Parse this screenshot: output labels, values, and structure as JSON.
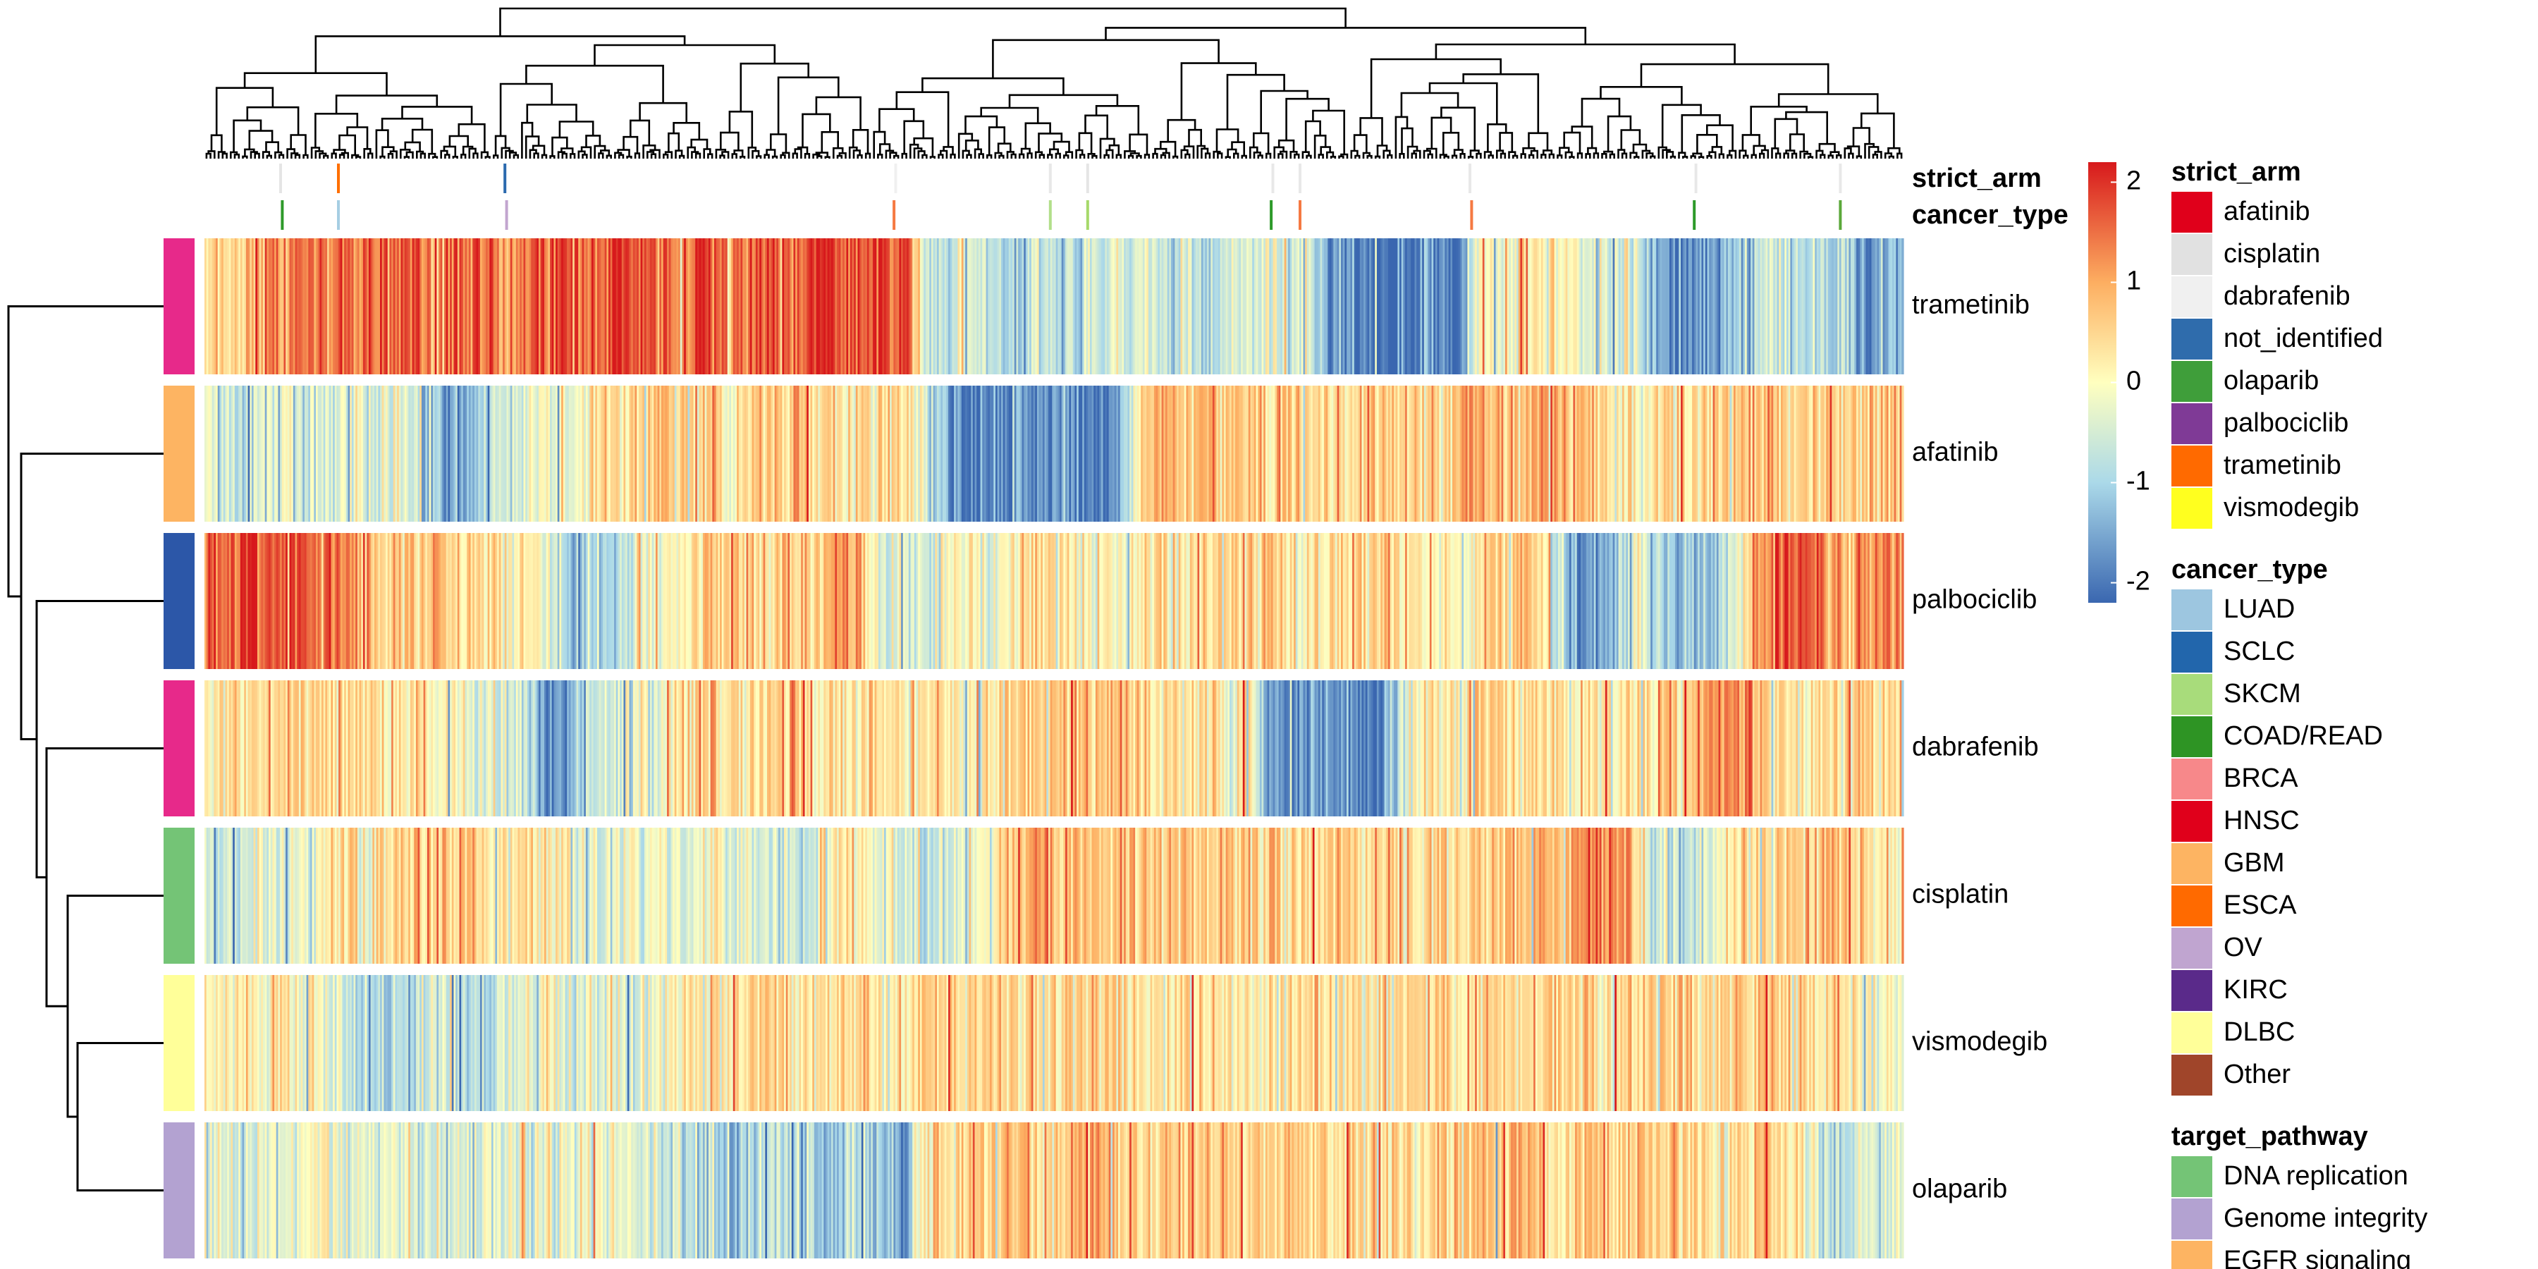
{
  "chart_data": {
    "type": "heatmap",
    "title": "",
    "rows": [
      "trametinib",
      "afatinib",
      "palbociclib",
      "dabrafenib",
      "cisplatin",
      "vismodegib",
      "olaparib"
    ],
    "row_pathway_colors": [
      "#E7298A",
      "#FDB462",
      "#2C57A8",
      "#E7298A",
      "#74C476",
      "#FFFF99",
      "#B3A2D1"
    ],
    "n_columns": 900,
    "color_scale": {
      "colors": [
        "#3A67B0",
        "#ABD9E9",
        "#FFFFBF",
        "#FDAE61",
        "#D7191C"
      ],
      "breaks": [
        -2.2,
        -1,
        0,
        1,
        2.2
      ]
    },
    "colorbar": {
      "ticks": [
        2,
        1,
        0,
        -1,
        -2
      ],
      "tick_labels": [
        "2",
        "1",
        "0",
        "-1",
        "-2"
      ]
    },
    "row_profiles": [
      [
        0.3,
        0.5,
        0.8,
        1.2,
        1.5,
        1.4,
        1.0,
        1.6,
        1.7,
        1.6,
        1.5,
        1.3,
        1.6,
        1.5,
        0.9,
        1.4,
        1.8,
        1.9,
        1.7,
        1.8,
        1.7,
        1.5,
        1.3,
        1.7,
        1.6,
        1.5,
        1.4,
        1.8,
        1.7,
        1.9,
        1.6,
        1.7,
        2.0,
        1.8,
        -0.6,
        -0.9,
        -0.4,
        -0.8,
        -1.2,
        -0.5,
        -0.7,
        -1.0,
        -0.6,
        -0.3,
        -0.4,
        -0.6,
        -0.8,
        -0.9,
        -0.7,
        -0.4,
        -0.5,
        -0.6,
        -0.4,
        -1.8,
        -2.0,
        -1.9,
        -2.1,
        -1.9,
        -1.8,
        -2.0,
        -0.1,
        -0.4,
        0.3,
        -0.2,
        0.1,
        -0.4,
        -0.6,
        -0.3,
        -1.4,
        -1.8,
        -1.7,
        -1.5,
        -1.0,
        -0.6,
        -0.4,
        -0.9,
        -1.1,
        -0.7,
        -1.5,
        -1.6
      ],
      [
        -0.3,
        -0.6,
        -0.8,
        -0.4,
        -0.2,
        -0.6,
        -0.5,
        -0.3,
        -0.4,
        -0.2,
        -0.9,
        -1.5,
        -1.7,
        -1.2,
        -0.6,
        -0.3,
        0.1,
        -0.2,
        0.0,
        0.3,
        0.2,
        0.5,
        0.4,
        0.3,
        0.6,
        0.2,
        0.5,
        0.7,
        0.9,
        0.4,
        0.2,
        0.3,
        0.6,
        0.4,
        -0.8,
        -1.6,
        -1.9,
        -2.0,
        -1.8,
        -1.7,
        -1.9,
        -2.0,
        -1.8,
        -1.7,
        0.6,
        0.9,
        1.1,
        1.2,
        0.8,
        0.6,
        0.5,
        0.7,
        0.4,
        0.3,
        0.5,
        0.6,
        0.5,
        0.4,
        0.6,
        0.8,
        1.0,
        0.9,
        0.8,
        1.2,
        0.9,
        0.5,
        0.4,
        0.2,
        0.3,
        0.6,
        0.5,
        0.4,
        0.7,
        0.8,
        0.6,
        0.5,
        0.7,
        0.6,
        0.5,
        0.7
      ],
      [
        1.2,
        1.6,
        1.9,
        1.7,
        1.8,
        1.5,
        1.3,
        1.0,
        0.7,
        0.6,
        0.5,
        0.7,
        0.6,
        0.4,
        0.3,
        0.2,
        0.0,
        -0.8,
        -1.1,
        -0.9,
        -0.6,
        -0.2,
        0.2,
        0.4,
        0.7,
        0.8,
        0.5,
        0.7,
        0.6,
        0.8,
        1.2,
        0.6,
        -0.1,
        -0.3,
        -0.5,
        -0.2,
        0.1,
        -0.4,
        0.2,
        0.4,
        0.3,
        0.2,
        0.0,
        -0.2,
        0.2,
        0.5,
        0.6,
        0.4,
        0.3,
        0.5,
        0.6,
        0.4,
        0.3,
        0.5,
        0.4,
        0.6,
        0.5,
        0.4,
        0.3,
        0.2,
        0.4,
        0.6,
        0.5,
        0.3,
        -1.3,
        -1.7,
        -1.4,
        -0.8,
        -0.4,
        -1.0,
        -1.5,
        -1.2,
        -0.5,
        1.3,
        1.6,
        1.8,
        1.5,
        1.2,
        1.1,
        1.3
      ],
      [
        0.3,
        0.5,
        0.2,
        0.4,
        0.5,
        0.3,
        0.6,
        0.4,
        0.2,
        0.1,
        0.3,
        0.2,
        0.0,
        -0.3,
        -0.5,
        -1.0,
        -1.7,
        -1.5,
        -0.9,
        -0.6,
        -0.4,
        -0.3,
        0.2,
        0.4,
        0.5,
        0.3,
        0.4,
        0.6,
        0.5,
        0.4,
        0.3,
        0.5,
        0.4,
        0.2,
        0.3,
        0.4,
        0.2,
        0.3,
        0.5,
        0.6,
        0.8,
        0.9,
        0.7,
        0.6,
        0.4,
        0.5,
        0.3,
        0.2,
        0.1,
        0.2,
        -1.5,
        -1.8,
        -1.9,
        -1.7,
        -1.8,
        -1.6,
        -1.2,
        0.1,
        0.3,
        0.4,
        0.5,
        0.6,
        0.3,
        0.4,
        0.5,
        0.3,
        0.2,
        0.4,
        0.5,
        0.7,
        0.6,
        1.1,
        1.2,
        0.9,
        0.6,
        0.4,
        0.3,
        0.5,
        0.6,
        0.5
      ],
      [
        -0.4,
        -0.7,
        -0.5,
        -0.3,
        -0.2,
        -0.5,
        0.3,
        0.4,
        0.2,
        0.5,
        0.7,
        0.6,
        0.8,
        0.4,
        0.2,
        0.5,
        0.3,
        0.0,
        -0.3,
        -0.4,
        -0.2,
        0.0,
        -0.3,
        -0.5,
        0.1,
        -0.3,
        -0.4,
        -0.6,
        -0.5,
        -0.4,
        0.3,
        0.2,
        -0.3,
        -0.5,
        -0.6,
        -0.4,
        -0.2,
        -0.3,
        0.9,
        1.1,
        0.8,
        0.7,
        0.6,
        0.5,
        0.6,
        0.7,
        0.8,
        0.6,
        0.5,
        0.7,
        0.6,
        0.5,
        0.4,
        0.6,
        0.7,
        0.5,
        0.6,
        0.4,
        0.5,
        0.6,
        0.4,
        0.5,
        0.7,
        0.8,
        0.6,
        1.1,
        1.5,
        1.4,
        -0.6,
        -0.8,
        -0.5,
        -0.3,
        0.2,
        0.4,
        0.6,
        0.5,
        0.8,
        0.9,
        0.6,
        0.3
      ],
      [
        0.1,
        0.2,
        0.4,
        0.3,
        0.2,
        0.1,
        -0.3,
        -0.8,
        -1.1,
        -1.0,
        -0.6,
        -0.4,
        -0.8,
        -0.9,
        -0.5,
        -0.3,
        0.0,
        -0.4,
        -0.6,
        -0.3,
        -0.5,
        -0.4,
        -0.2,
        0.2,
        0.4,
        0.3,
        0.5,
        0.4,
        0.2,
        0.3,
        0.5,
        0.4,
        0.3,
        0.2,
        0.4,
        0.3,
        0.5,
        0.6,
        0.5,
        0.4,
        0.3,
        0.5,
        0.6,
        0.4,
        0.3,
        0.2,
        0.4,
        0.5,
        0.3,
        0.4,
        0.2,
        0.3,
        0.5,
        0.4,
        0.3,
        0.2,
        0.4,
        0.3,
        0.5,
        0.4,
        0.6,
        0.5,
        0.7,
        0.6,
        0.4,
        0.5,
        0.3,
        0.4,
        0.5,
        0.6,
        0.4,
        0.5,
        0.6,
        0.7,
        0.5,
        0.4,
        0.3,
        0.2,
        0.1,
        0.0
      ],
      [
        -0.2,
        -0.5,
        -0.3,
        -0.4,
        -0.2,
        -0.1,
        -0.3,
        -0.4,
        -0.2,
        -0.3,
        -0.5,
        -0.4,
        -0.3,
        -0.2,
        -0.4,
        -0.3,
        -0.5,
        -0.4,
        -0.3,
        -0.2,
        -0.3,
        -0.4,
        -0.5,
        -0.7,
        -0.9,
        -1.1,
        -0.8,
        -0.6,
        -0.9,
        -1.2,
        -1.0,
        -0.8,
        -1.3,
        -1.5,
        0.5,
        0.7,
        0.6,
        0.5,
        0.8,
        0.6,
        0.7,
        0.9,
        0.8,
        0.6,
        0.5,
        0.7,
        0.6,
        0.8,
        0.7,
        0.6,
        0.5,
        0.7,
        0.6,
        0.5,
        0.7,
        0.6,
        0.5,
        0.4,
        0.6,
        0.5,
        0.7,
        0.6,
        0.8,
        0.7,
        0.6,
        0.5,
        0.7,
        0.6,
        0.5,
        0.6,
        0.5,
        0.4,
        0.6,
        0.5,
        0.4,
        0.3,
        -0.5,
        -0.9,
        -0.6,
        -0.3
      ]
    ],
    "top_annotations": [
      {
        "name": "strict_arm",
        "marks": [
          {
            "x": 0.044,
            "color": "#E5E5E5"
          },
          {
            "x": 0.078,
            "color": "#FF6F00"
          },
          {
            "x": 0.176,
            "color": "#2B6AAE"
          },
          {
            "x": 0.406,
            "color": "#F0F0F0"
          },
          {
            "x": 0.497,
            "color": "#E8E8E8"
          },
          {
            "x": 0.519,
            "color": "#E5E5E5"
          },
          {
            "x": 0.628,
            "color": "#E8E8E8"
          },
          {
            "x": 0.644,
            "color": "#E8E8E8"
          },
          {
            "x": 0.744,
            "color": "#E8E8E8"
          },
          {
            "x": 0.877,
            "color": "#E8E8E8"
          },
          {
            "x": 0.962,
            "color": "#E8E8E8"
          }
        ]
      },
      {
        "name": "cancer_type",
        "marks": [
          {
            "x": 0.045,
            "color": "#2E9A2A"
          },
          {
            "x": 0.078,
            "color": "#A6CEE3"
          },
          {
            "x": 0.177,
            "color": "#C2A5CF"
          },
          {
            "x": 0.405,
            "color": "#F57942"
          },
          {
            "x": 0.497,
            "color": "#B2DF8A"
          },
          {
            "x": 0.519,
            "color": "#A6D96A"
          },
          {
            "x": 0.627,
            "color": "#2E9A2A"
          },
          {
            "x": 0.644,
            "color": "#F57942"
          },
          {
            "x": 0.745,
            "color": "#F57942"
          },
          {
            "x": 0.876,
            "color": "#2E9A2A"
          },
          {
            "x": 0.962,
            "color": "#5BA83A"
          }
        ]
      }
    ],
    "legends": [
      {
        "title": "strict_arm",
        "entries": [
          {
            "label": "afatinib",
            "color": "#E0001B"
          },
          {
            "label": "cisplatin",
            "color": "#E1E1E1"
          },
          {
            "label": "dabrafenib",
            "color": "#F0F0F0"
          },
          {
            "label": "not_identified",
            "color": "#2F6CAC"
          },
          {
            "label": "olaparib",
            "color": "#3F9E3A"
          },
          {
            "label": "palbociclib",
            "color": "#7F3A96"
          },
          {
            "label": "trametinib",
            "color": "#FF6A00"
          },
          {
            "label": "vismodegib",
            "color": "#FFFF1F"
          }
        ]
      },
      {
        "title": "cancer_type",
        "entries": [
          {
            "label": "LUAD",
            "color": "#9DC6E0"
          },
          {
            "label": "SCLC",
            "color": "#2266AC"
          },
          {
            "label": "SKCM",
            "color": "#A8DC7B"
          },
          {
            "label": "COAD/READ",
            "color": "#2E9424"
          },
          {
            "label": "BRCA",
            "color": "#F7888A"
          },
          {
            "label": "HNSC",
            "color": "#E0001B"
          },
          {
            "label": "GBM",
            "color": "#FDB462"
          },
          {
            "label": "ESCA",
            "color": "#FF6A00"
          },
          {
            "label": "OV",
            "color": "#C0A5D0"
          },
          {
            "label": "KIRC",
            "color": "#5A2A8A"
          },
          {
            "label": "DLBC",
            "color": "#FFFF99"
          },
          {
            "label": "Other",
            "color": "#A0452A"
          }
        ]
      },
      {
        "title": "target_pathway",
        "entries": [
          {
            "label": "DNA replication",
            "color": "#74C476"
          },
          {
            "label": "Genome integrity",
            "color": "#B3A2D1"
          },
          {
            "label": "EGFR signaling",
            "color": "#FDB462"
          }
        ]
      }
    ]
  }
}
